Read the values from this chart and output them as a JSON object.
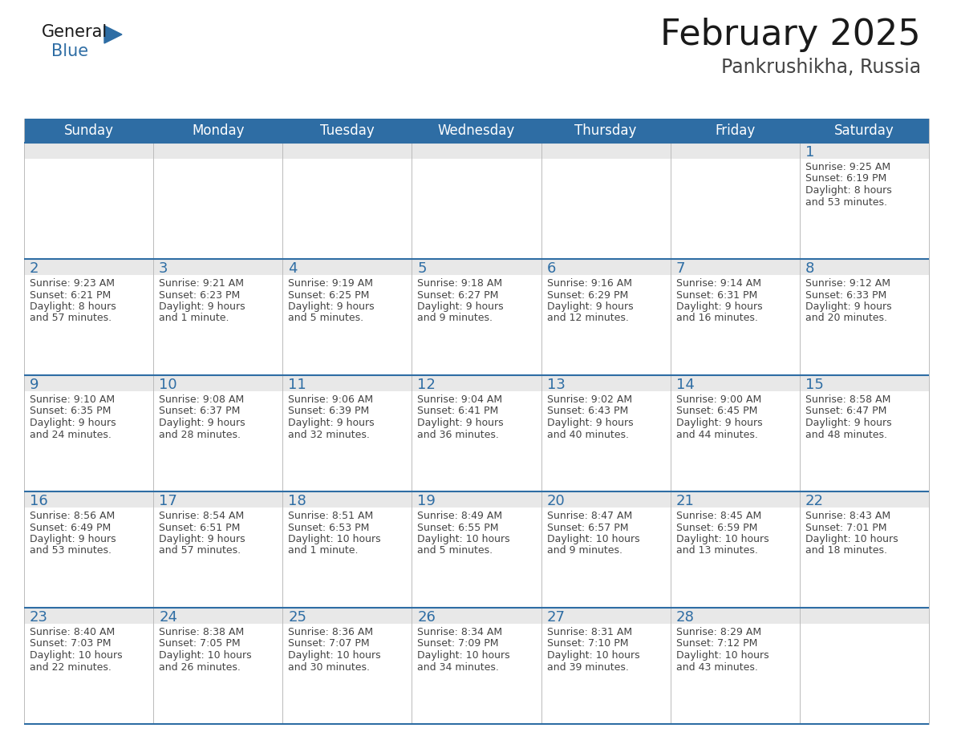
{
  "title": "February 2025",
  "subtitle": "Pankrushikha, Russia",
  "header_bg": "#2E6DA4",
  "header_text_color": "#FFFFFF",
  "row_top_bg": "#E8E8E8",
  "cell_bg": "#FFFFFF",
  "text_color": "#444444",
  "day_number_color": "#2E6DA4",
  "border_color": "#2E6DA4",
  "sep_color": "#BBBBBB",
  "days_of_week": [
    "Sunday",
    "Monday",
    "Tuesday",
    "Wednesday",
    "Thursday",
    "Friday",
    "Saturday"
  ],
  "calendar_data": [
    [
      null,
      null,
      null,
      null,
      null,
      null,
      {
        "day": "1",
        "sunrise": "9:25 AM",
        "sunset": "6:19 PM",
        "daylight1": "Daylight: 8 hours",
        "daylight2": "and 53 minutes."
      }
    ],
    [
      {
        "day": "2",
        "sunrise": "9:23 AM",
        "sunset": "6:21 PM",
        "daylight1": "Daylight: 8 hours",
        "daylight2": "and 57 minutes."
      },
      {
        "day": "3",
        "sunrise": "9:21 AM",
        "sunset": "6:23 PM",
        "daylight1": "Daylight: 9 hours",
        "daylight2": "and 1 minute."
      },
      {
        "day": "4",
        "sunrise": "9:19 AM",
        "sunset": "6:25 PM",
        "daylight1": "Daylight: 9 hours",
        "daylight2": "and 5 minutes."
      },
      {
        "day": "5",
        "sunrise": "9:18 AM",
        "sunset": "6:27 PM",
        "daylight1": "Daylight: 9 hours",
        "daylight2": "and 9 minutes."
      },
      {
        "day": "6",
        "sunrise": "9:16 AM",
        "sunset": "6:29 PM",
        "daylight1": "Daylight: 9 hours",
        "daylight2": "and 12 minutes."
      },
      {
        "day": "7",
        "sunrise": "9:14 AM",
        "sunset": "6:31 PM",
        "daylight1": "Daylight: 9 hours",
        "daylight2": "and 16 minutes."
      },
      {
        "day": "8",
        "sunrise": "9:12 AM",
        "sunset": "6:33 PM",
        "daylight1": "Daylight: 9 hours",
        "daylight2": "and 20 minutes."
      }
    ],
    [
      {
        "day": "9",
        "sunrise": "9:10 AM",
        "sunset": "6:35 PM",
        "daylight1": "Daylight: 9 hours",
        "daylight2": "and 24 minutes."
      },
      {
        "day": "10",
        "sunrise": "9:08 AM",
        "sunset": "6:37 PM",
        "daylight1": "Daylight: 9 hours",
        "daylight2": "and 28 minutes."
      },
      {
        "day": "11",
        "sunrise": "9:06 AM",
        "sunset": "6:39 PM",
        "daylight1": "Daylight: 9 hours",
        "daylight2": "and 32 minutes."
      },
      {
        "day": "12",
        "sunrise": "9:04 AM",
        "sunset": "6:41 PM",
        "daylight1": "Daylight: 9 hours",
        "daylight2": "and 36 minutes."
      },
      {
        "day": "13",
        "sunrise": "9:02 AM",
        "sunset": "6:43 PM",
        "daylight1": "Daylight: 9 hours",
        "daylight2": "and 40 minutes."
      },
      {
        "day": "14",
        "sunrise": "9:00 AM",
        "sunset": "6:45 PM",
        "daylight1": "Daylight: 9 hours",
        "daylight2": "and 44 minutes."
      },
      {
        "day": "15",
        "sunrise": "8:58 AM",
        "sunset": "6:47 PM",
        "daylight1": "Daylight: 9 hours",
        "daylight2": "and 48 minutes."
      }
    ],
    [
      {
        "day": "16",
        "sunrise": "8:56 AM",
        "sunset": "6:49 PM",
        "daylight1": "Daylight: 9 hours",
        "daylight2": "and 53 minutes."
      },
      {
        "day": "17",
        "sunrise": "8:54 AM",
        "sunset": "6:51 PM",
        "daylight1": "Daylight: 9 hours",
        "daylight2": "and 57 minutes."
      },
      {
        "day": "18",
        "sunrise": "8:51 AM",
        "sunset": "6:53 PM",
        "daylight1": "Daylight: 10 hours",
        "daylight2": "and 1 minute."
      },
      {
        "day": "19",
        "sunrise": "8:49 AM",
        "sunset": "6:55 PM",
        "daylight1": "Daylight: 10 hours",
        "daylight2": "and 5 minutes."
      },
      {
        "day": "20",
        "sunrise": "8:47 AM",
        "sunset": "6:57 PM",
        "daylight1": "Daylight: 10 hours",
        "daylight2": "and 9 minutes."
      },
      {
        "day": "21",
        "sunrise": "8:45 AM",
        "sunset": "6:59 PM",
        "daylight1": "Daylight: 10 hours",
        "daylight2": "and 13 minutes."
      },
      {
        "day": "22",
        "sunrise": "8:43 AM",
        "sunset": "7:01 PM",
        "daylight1": "Daylight: 10 hours",
        "daylight2": "and 18 minutes."
      }
    ],
    [
      {
        "day": "23",
        "sunrise": "8:40 AM",
        "sunset": "7:03 PM",
        "daylight1": "Daylight: 10 hours",
        "daylight2": "and 22 minutes."
      },
      {
        "day": "24",
        "sunrise": "8:38 AM",
        "sunset": "7:05 PM",
        "daylight1": "Daylight: 10 hours",
        "daylight2": "and 26 minutes."
      },
      {
        "day": "25",
        "sunrise": "8:36 AM",
        "sunset": "7:07 PM",
        "daylight1": "Daylight: 10 hours",
        "daylight2": "and 30 minutes."
      },
      {
        "day": "26",
        "sunrise": "8:34 AM",
        "sunset": "7:09 PM",
        "daylight1": "Daylight: 10 hours",
        "daylight2": "and 34 minutes."
      },
      {
        "day": "27",
        "sunrise": "8:31 AM",
        "sunset": "7:10 PM",
        "daylight1": "Daylight: 10 hours",
        "daylight2": "and 39 minutes."
      },
      {
        "day": "28",
        "sunrise": "8:29 AM",
        "sunset": "7:12 PM",
        "daylight1": "Daylight: 10 hours",
        "daylight2": "and 43 minutes."
      },
      null
    ]
  ],
  "title_fontsize": 32,
  "subtitle_fontsize": 17,
  "header_fontsize": 12,
  "day_fontsize": 13,
  "info_fontsize": 9,
  "logo_general_fontsize": 15,
  "logo_blue_fontsize": 15
}
